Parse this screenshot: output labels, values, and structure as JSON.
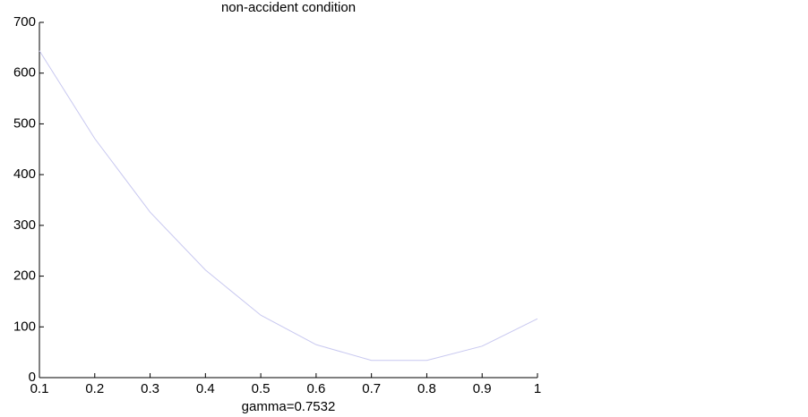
{
  "chart_data": {
    "type": "line",
    "title": "non-accident condition",
    "x_label": "gamma=0.7532",
    "x": [
      0.1,
      0.2,
      0.3,
      0.4,
      0.5,
      0.6,
      0.7,
      0.8,
      0.9,
      1
    ],
    "series": [
      {
        "color": "#c8c8f0",
        "values": [
          644,
          471,
          326,
          212,
          123,
          65,
          34,
          34,
          62,
          116
        ]
      }
    ],
    "xlim": [
      0.1,
      1
    ],
    "xticks": [
      0.1,
      0.2,
      0.3,
      0.4,
      0.5,
      0.6,
      0.7,
      0.8,
      0.9,
      1
    ],
    "ylim": [
      0,
      700
    ],
    "yticks": [
      0,
      100,
      200,
      300,
      400,
      500,
      600,
      700
    ],
    "grid": false
  }
}
